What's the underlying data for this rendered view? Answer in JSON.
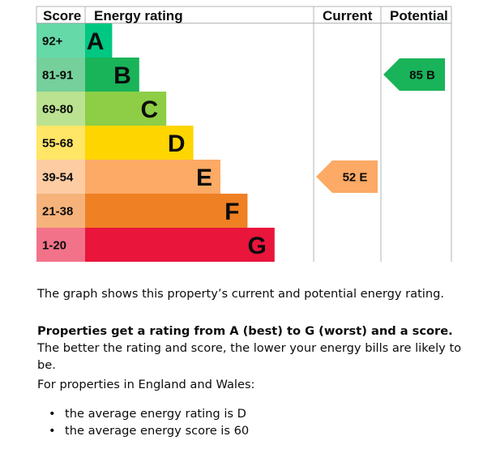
{
  "chart_data": {
    "type": "bar",
    "headers": {
      "score": "Score",
      "rating": "Energy rating",
      "current": "Current",
      "potential": "Potential"
    },
    "bands": [
      {
        "range": "92+",
        "letter": "A",
        "bar_color": "#00c781",
        "score_color": "#66d9a9",
        "relative_length": 1
      },
      {
        "range": "81-91",
        "letter": "B",
        "bar_color": "#19b459",
        "score_color": "#75d09b",
        "relative_length": 2
      },
      {
        "range": "69-80",
        "letter": "C",
        "bar_color": "#8dce46",
        "score_color": "#bbe290",
        "relative_length": 3
      },
      {
        "range": "55-68",
        "letter": "D",
        "bar_color": "#ffd500",
        "score_color": "#ffe666",
        "relative_length": 4
      },
      {
        "range": "39-54",
        "letter": "E",
        "bar_color": "#fcaa65",
        "score_color": "#fdcca3",
        "relative_length": 5
      },
      {
        "range": "21-38",
        "letter": "F",
        "bar_color": "#ef8023",
        "score_color": "#f5b37b",
        "relative_length": 6
      },
      {
        "range": "1-20",
        "letter": "G",
        "bar_color": "#e9153b",
        "score_color": "#f27389",
        "relative_length": 7
      }
    ],
    "current": {
      "score": 52,
      "band": "E",
      "label": "52  E",
      "color": "#fcaa65"
    },
    "potential": {
      "score": 85,
      "band": "B",
      "label": "85  B",
      "color": "#19b459"
    }
  },
  "description": {
    "intro": "The graph shows this property’s current and potential energy rating.",
    "rating_bold": "Properties get a rating from A (best) to G (worst) and a score.",
    "rating_rest": " The better the rating and score, the lower your energy bills are likely to be.",
    "region_intro": "For properties in England and Wales:",
    "averages": [
      "the average energy rating is D",
      "the average energy score is 60"
    ]
  }
}
